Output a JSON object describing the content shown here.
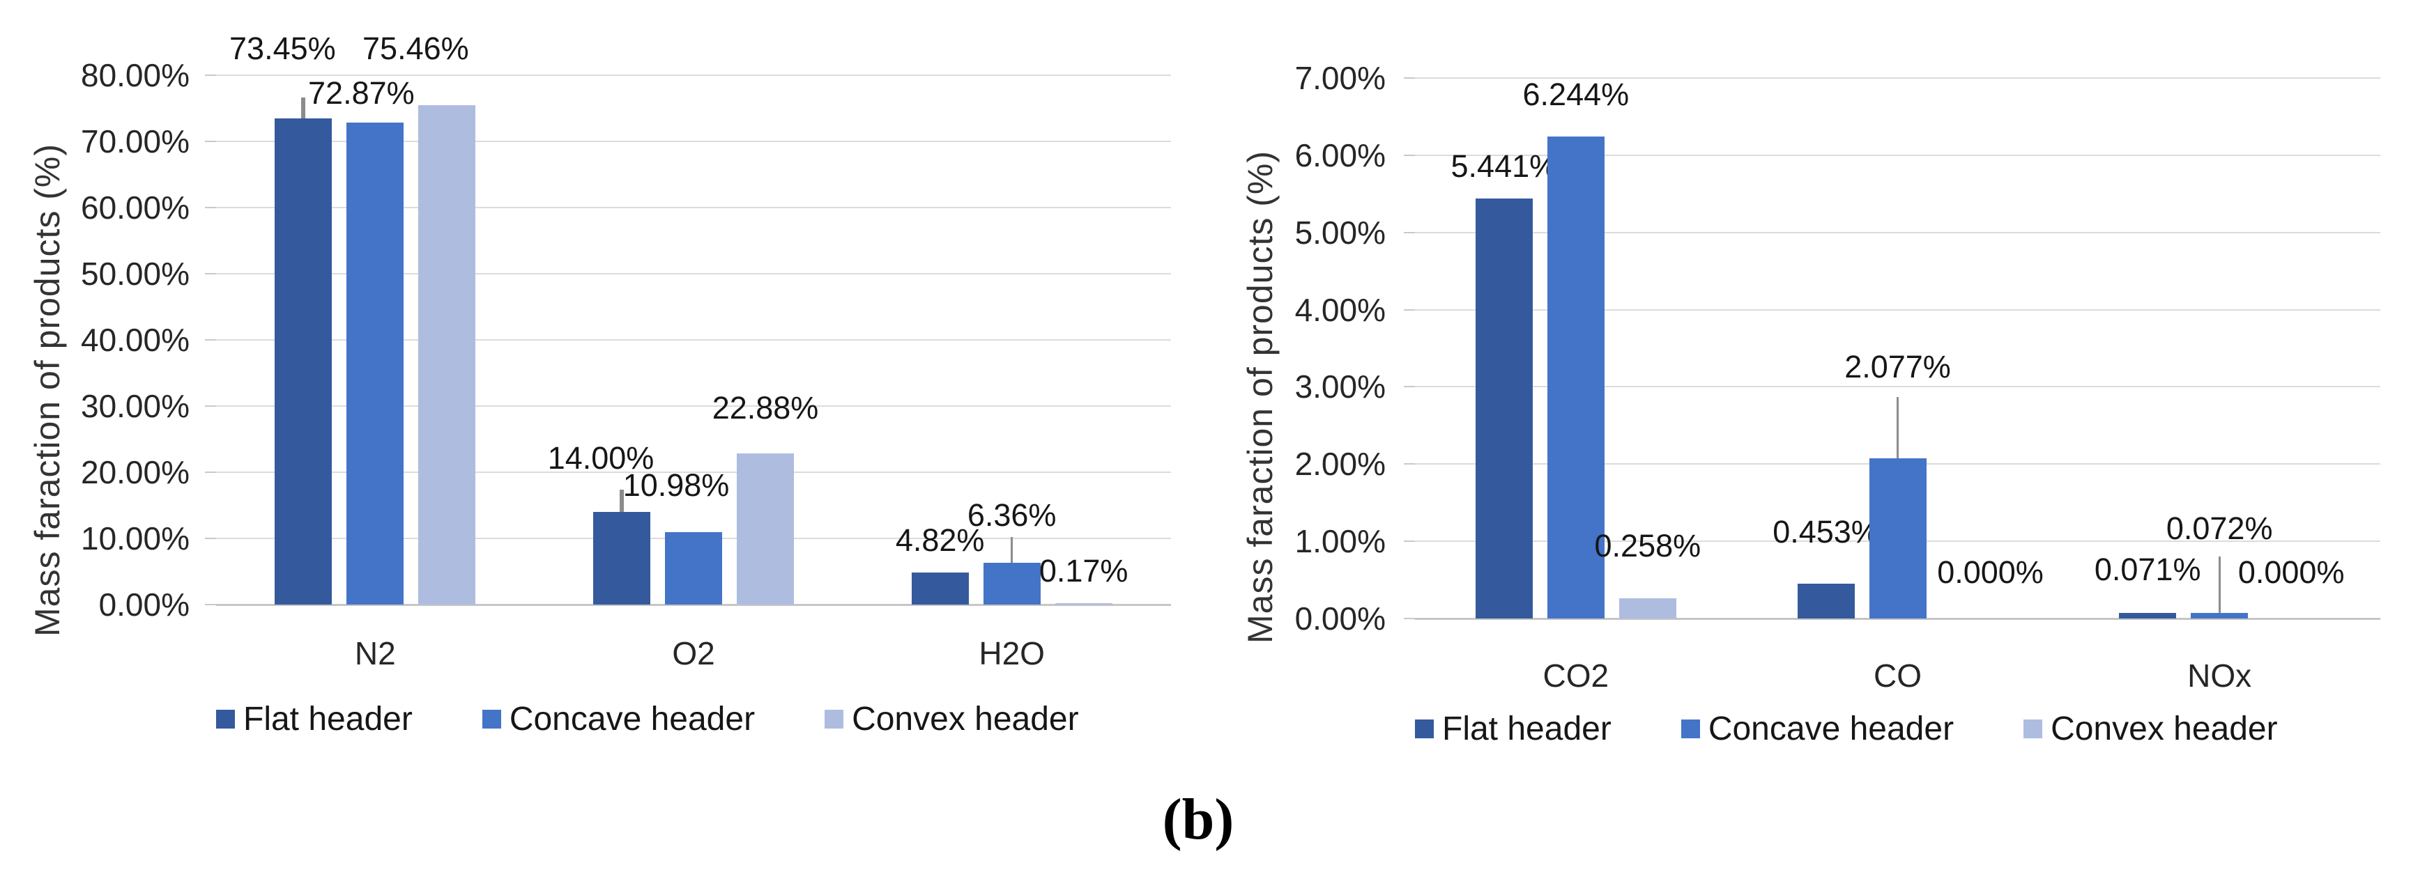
{
  "caption": "(b)",
  "series_colors": {
    "flat": "#345A9D",
    "concave": "#4474C8",
    "convex": "#AEBCE0"
  },
  "chart_data": [
    {
      "type": "bar",
      "title": "",
      "xlabel": "",
      "ylabel": "Mass faraction of products (%)",
      "categories": [
        "N2",
        "O2",
        "H2O"
      ],
      "series": [
        {
          "name": "Flat header",
          "color": "#345A9D",
          "values": [
            73.45,
            14.0,
            4.82
          ],
          "labels": [
            "73.45%",
            "14.00%",
            "4.82%"
          ]
        },
        {
          "name": "Concave header",
          "color": "#4474C8",
          "values": [
            72.87,
            10.98,
            6.36
          ],
          "labels": [
            "72.87%",
            "10.98%",
            "6.36%"
          ]
        },
        {
          "name": "Convex header",
          "color": "#AEBCE0",
          "values": [
            75.46,
            22.88,
            0.17
          ],
          "labels": [
            "75.46%",
            "22.88%",
            "0.17%"
          ]
        }
      ],
      "ylim": [
        0,
        80
      ],
      "ytick_step": 10,
      "ytick_labels": [
        "0.00%",
        "10.00%",
        "20.00%",
        "30.00%",
        "40.00%",
        "50.00%",
        "60.00%",
        "70.00%",
        "80.00%"
      ],
      "grid": true,
      "legend_position": "bottom",
      "error_bars": [
        {
          "series": 0,
          "category": 0,
          "from": 73.45,
          "to": 76.6
        },
        {
          "series": 0,
          "category": 1,
          "from": 14.0,
          "to": 17.4
        },
        {
          "series": 1,
          "category": 2,
          "from": 6.36,
          "to": 10.2
        }
      ]
    },
    {
      "type": "bar",
      "title": "",
      "xlabel": "",
      "ylabel": "Mass faraction of products (%)",
      "categories": [
        "CO2",
        "CO",
        "NOx"
      ],
      "series": [
        {
          "name": "Flat header",
          "color": "#345A9D",
          "values": [
            5.441,
            0.453,
            0.071
          ],
          "labels": [
            "5.441%",
            "0.453%",
            "0.071%"
          ]
        },
        {
          "name": "Concave header",
          "color": "#4474C8",
          "values": [
            6.244,
            2.077,
            0.072
          ],
          "labels": [
            "6.244%",
            "2.077%",
            "0.072%"
          ]
        },
        {
          "name": "Convex header",
          "color": "#AEBCE0",
          "values": [
            0.258,
            0.0,
            0.0
          ],
          "labels": [
            "0.258%",
            "0.000%",
            "0.000%"
          ]
        }
      ],
      "ylim": [
        0,
        7
      ],
      "ytick_step": 1,
      "ytick_labels": [
        "0.00%",
        "1.00%",
        "2.00%",
        "3.00%",
        "4.00%",
        "5.00%",
        "6.00%",
        "7.00%"
      ],
      "grid": true,
      "legend_position": "bottom",
      "error_bars": [
        {
          "series": 1,
          "category": 1,
          "from": 2.077,
          "to": 2.87
        },
        {
          "series": 1,
          "category": 2,
          "from": 0.072,
          "to": 0.8
        }
      ]
    }
  ]
}
